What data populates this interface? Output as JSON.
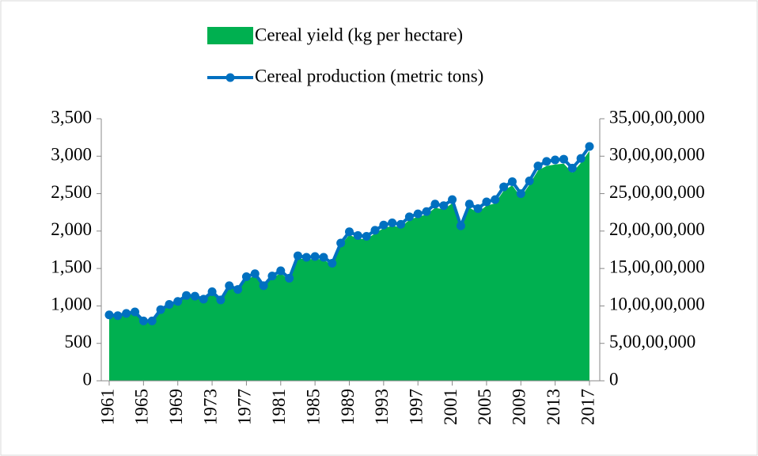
{
  "chart_data": {
    "type": "area-line",
    "x": [
      1961,
      1962,
      1963,
      1964,
      1965,
      1966,
      1967,
      1968,
      1969,
      1970,
      1971,
      1972,
      1973,
      1974,
      1975,
      1976,
      1977,
      1978,
      1979,
      1980,
      1981,
      1982,
      1983,
      1984,
      1985,
      1986,
      1987,
      1988,
      1989,
      1990,
      1991,
      1992,
      1993,
      1994,
      1995,
      1996,
      1997,
      1998,
      1999,
      2000,
      2001,
      2002,
      2003,
      2004,
      2005,
      2006,
      2007,
      2008,
      2009,
      2010,
      2011,
      2012,
      2013,
      2014,
      2015,
      2016,
      2017
    ],
    "xlim": [
      1961,
      2017
    ],
    "xticks": [
      1961,
      1965,
      1969,
      1973,
      1977,
      1981,
      1985,
      1989,
      1993,
      1997,
      2001,
      2005,
      2009,
      2013,
      2017
    ],
    "series": [
      {
        "name": "Cereal yield (kg per hectare)",
        "color": "#00b050",
        "values": [
          870,
          860,
          890,
          910,
          790,
          790,
          940,
          1000,
          1040,
          1120,
          1110,
          1070,
          1170,
          1060,
          1250,
          1200,
          1360,
          1400,
          1250,
          1370,
          1440,
          1340,
          1640,
          1620,
          1630,
          1620,
          1540,
          1810,
          1950,
          1900,
          1890,
          1970,
          2040,
          2070,
          2050,
          2150,
          2190,
          2220,
          2310,
          2290,
          2370,
          2030,
          2310,
          2250,
          2340,
          2370,
          2540,
          2610,
          2450,
          2620,
          2810,
          2870,
          2890,
          2900,
          2780,
          2910,
          3070
        ]
      },
      {
        "name": "Cereal production (metric tons)",
        "color": "#0070c0",
        "axis": "y2",
        "values": [
          88000000,
          87000000,
          90000000,
          92000000,
          80000000,
          80000000,
          95000000,
          102000000,
          106000000,
          114000000,
          113000000,
          109000000,
          119000000,
          108000000,
          127000000,
          122000000,
          139000000,
          143000000,
          127000000,
          140000000,
          147000000,
          137000000,
          167000000,
          165000000,
          166000000,
          165000000,
          157000000,
          184000000,
          199000000,
          194000000,
          193000000,
          201000000,
          208000000,
          211000000,
          209000000,
          219000000,
          223000000,
          226000000,
          236000000,
          234000000,
          242000000,
          207000000,
          236000000,
          230000000,
          239000000,
          242000000,
          259000000,
          266000000,
          250000000,
          267000000,
          287000000,
          293000000,
          295000000,
          296000000,
          284000000,
          297000000,
          313000000
        ]
      }
    ],
    "ylim": [
      0,
      3500
    ],
    "yticks": [
      0,
      500,
      {
        "value": 1000,
        "label": "1,000"
      },
      {
        "value": 1500,
        "label": "1,500"
      },
      {
        "value": 2000,
        "label": "2,000"
      },
      {
        "value": 2500,
        "label": "2,500"
      },
      {
        "value": 3000,
        "label": "3,000"
      },
      {
        "value": 3500,
        "label": "3,500"
      }
    ],
    "y2lim": [
      0,
      350000000
    ],
    "y2ticks": [
      0,
      {
        "value": 50000000,
        "label": "5,00,00,000"
      },
      {
        "value": 100000000,
        "label": "10,00,00,000"
      },
      {
        "value": 150000000,
        "label": "15,00,00,000"
      },
      {
        "value": 200000000,
        "label": "20,00,00,000"
      },
      {
        "value": 250000000,
        "label": "25,00,00,000"
      },
      {
        "value": 300000000,
        "label": "30,00,00,000"
      },
      {
        "value": 350000000,
        "label": "35,00,00,000"
      }
    ],
    "legend": "top"
  }
}
